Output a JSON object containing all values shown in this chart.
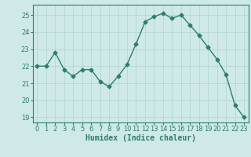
{
  "x": [
    0,
    1,
    2,
    3,
    4,
    5,
    6,
    7,
    8,
    9,
    10,
    11,
    12,
    13,
    14,
    15,
    16,
    17,
    18,
    19,
    20,
    21,
    22,
    23
  ],
  "y": [
    22.0,
    22.0,
    22.8,
    21.8,
    21.4,
    21.8,
    21.8,
    21.1,
    20.8,
    21.4,
    22.1,
    23.3,
    24.6,
    24.9,
    25.1,
    24.8,
    25.0,
    24.4,
    23.8,
    23.1,
    22.4,
    21.5,
    19.7,
    19.0
  ],
  "line_color": "#2e7d6e",
  "marker": "D",
  "marker_size": 2.5,
  "bg_color": "#cee9e7",
  "grid_color": "#b0d4d0",
  "xlabel": "Humidex (Indice chaleur)",
  "ylim": [
    18.7,
    25.6
  ],
  "xlim": [
    -0.5,
    23.5
  ],
  "yticks": [
    19,
    20,
    21,
    22,
    23,
    24,
    25
  ],
  "xticks": [
    0,
    1,
    2,
    3,
    4,
    5,
    6,
    7,
    8,
    9,
    10,
    11,
    12,
    13,
    14,
    15,
    16,
    17,
    18,
    19,
    20,
    21,
    22,
    23
  ],
  "tick_color": "#2e7d6e",
  "label_color": "#2e7d6e",
  "tick_fontsize": 6,
  "xlabel_fontsize": 7
}
